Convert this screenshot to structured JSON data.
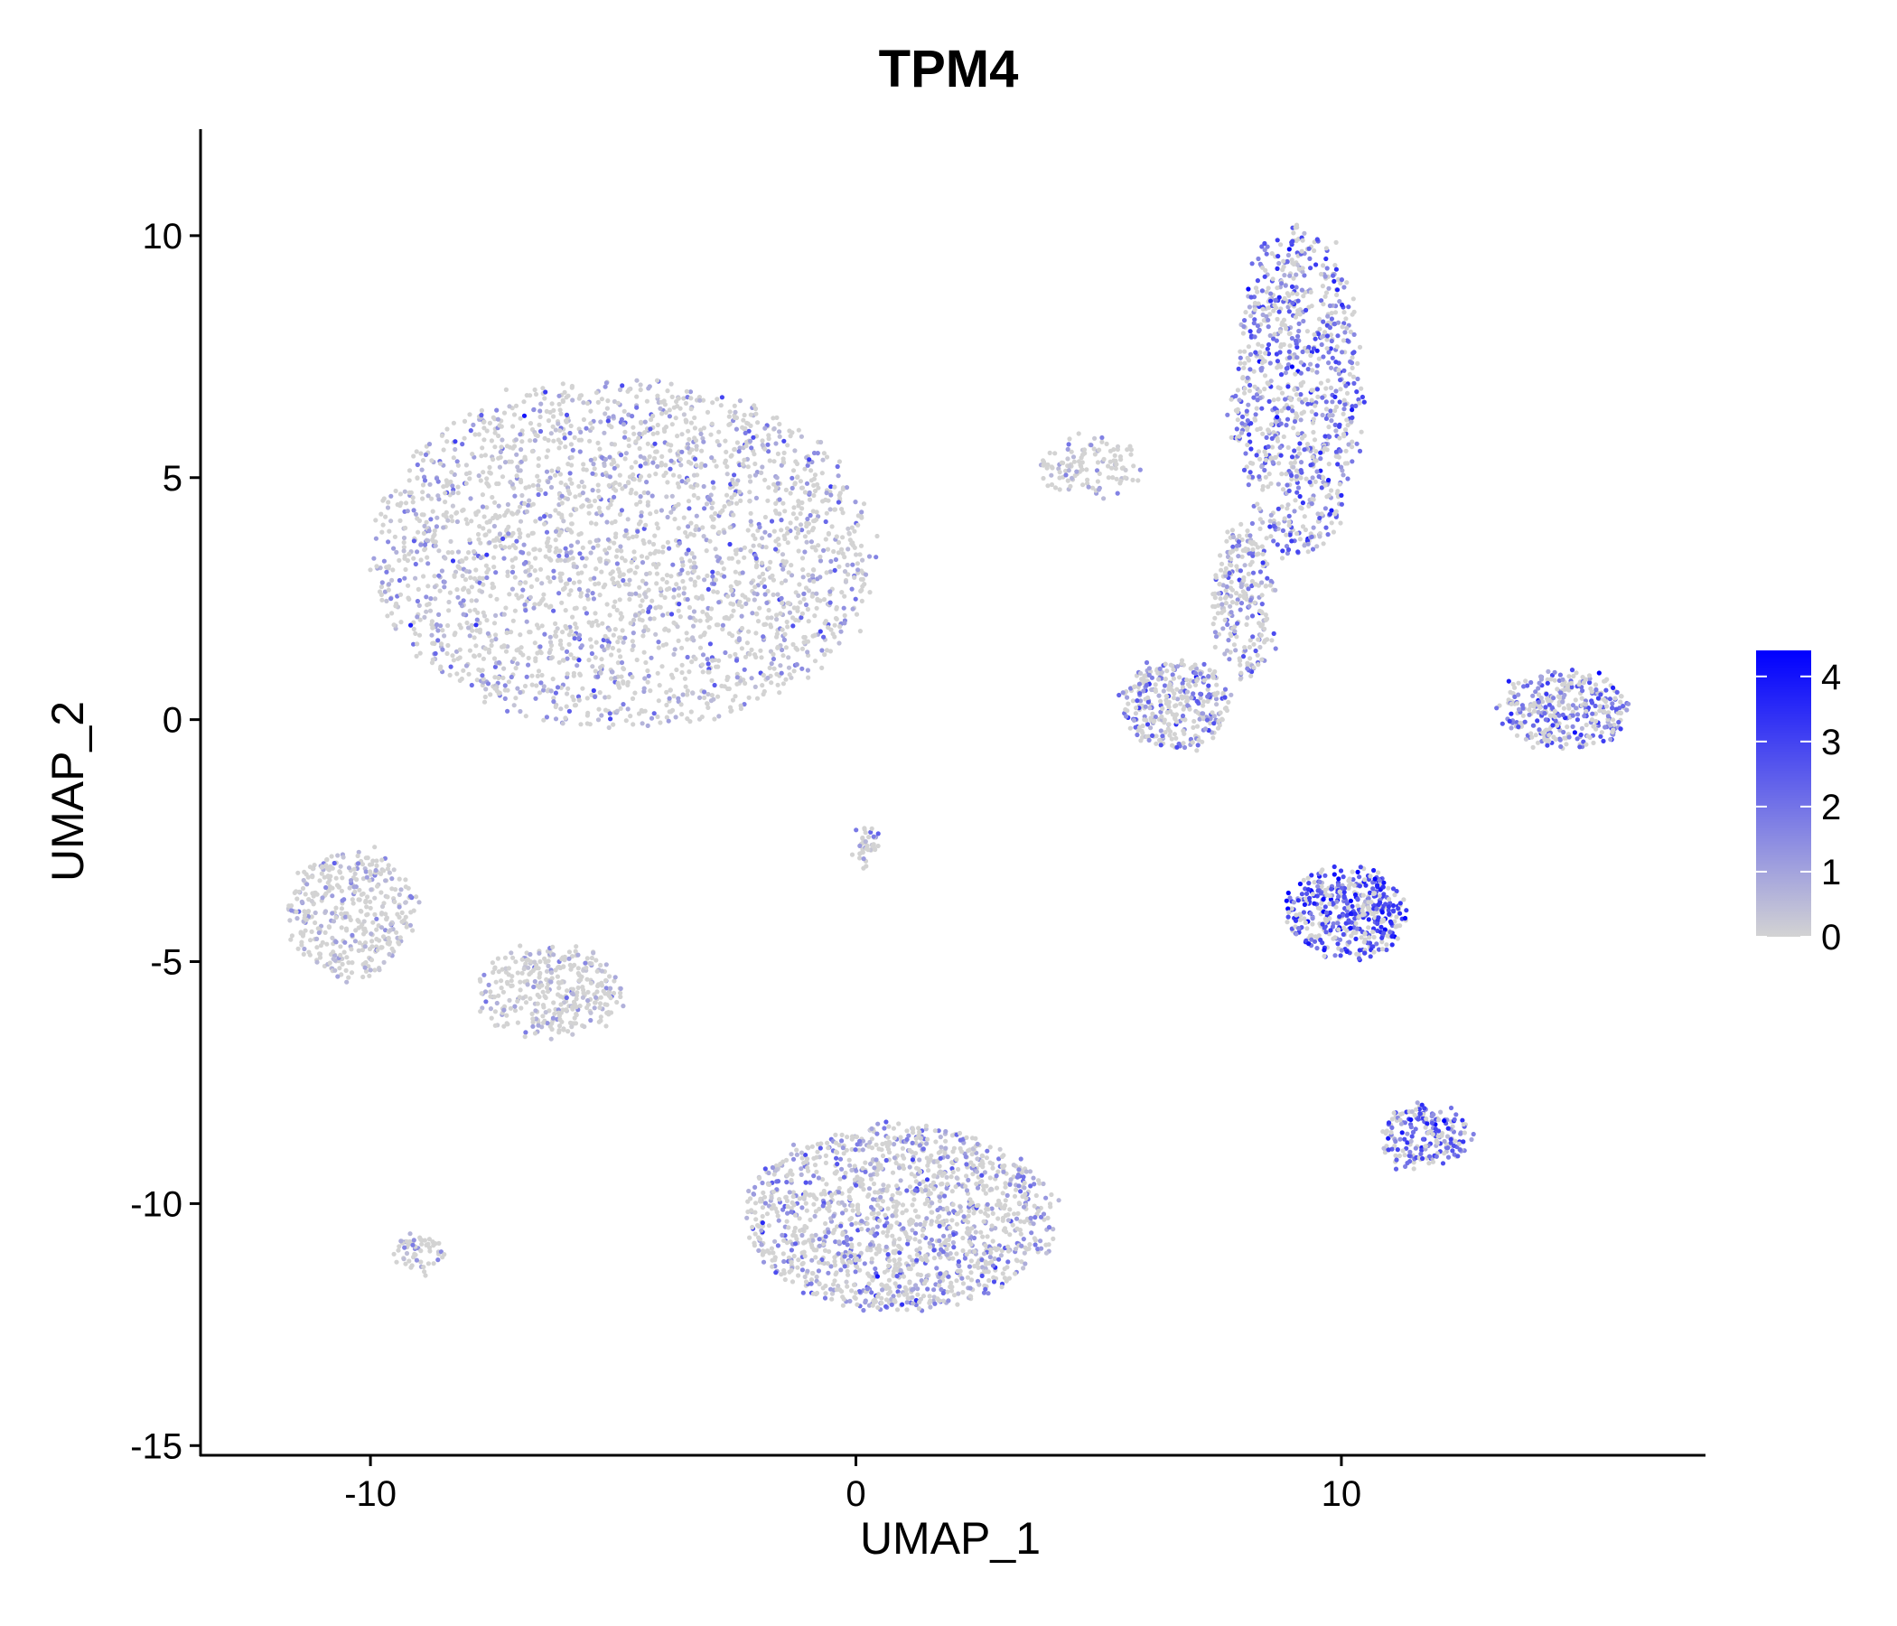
{
  "chart_data": {
    "type": "scatter",
    "title": "TPM4",
    "xlabel": "UMAP_1",
    "ylabel": "UMAP_2",
    "xlim": [
      -13.5,
      17.5
    ],
    "ylim": [
      -15.2,
      12.2
    ],
    "x_ticks": [
      -10,
      0,
      10
    ],
    "y_ticks": [
      10,
      5,
      0,
      -5,
      -10,
      -15
    ],
    "grid": false,
    "legend_position": "right",
    "legend": {
      "ticks": [
        4,
        3,
        2,
        1,
        0
      ],
      "min": 0,
      "max": 4.4,
      "low_color": "#d3d3d3",
      "high_color": "#0000ff"
    },
    "clusters": [
      {
        "name": "large-upper-left",
        "center": [
          -4.8,
          3.4
        ],
        "spread": [
          5.2,
          3.6
        ],
        "mean_expression": 0.9,
        "n_points": 2600
      },
      {
        "name": "upper-right-tall",
        "center": [
          9.1,
          6.8
        ],
        "spread": [
          1.3,
          3.4
        ],
        "mean_expression": 2.0,
        "n_points": 900
      },
      {
        "name": "upper-right-stem",
        "center": [
          8.0,
          2.4
        ],
        "spread": [
          0.6,
          1.6
        ],
        "mean_expression": 1.4,
        "n_points": 250
      },
      {
        "name": "mid-right-lobe",
        "center": [
          6.6,
          0.3
        ],
        "spread": [
          1.1,
          0.9
        ],
        "mean_expression": 1.5,
        "n_points": 350
      },
      {
        "name": "far-right-crescent",
        "center": [
          14.6,
          0.2
        ],
        "spread": [
          1.3,
          0.8
        ],
        "mean_expression": 2.0,
        "n_points": 350
      },
      {
        "name": "middle-right-triangle",
        "center": [
          10.1,
          -4.0
        ],
        "spread": [
          1.2,
          0.9
        ],
        "mean_expression": 2.8,
        "n_points": 450
      },
      {
        "name": "lower-right-small",
        "center": [
          11.7,
          -8.6
        ],
        "spread": [
          0.9,
          0.6
        ],
        "mean_expression": 2.2,
        "n_points": 200
      },
      {
        "name": "lower-middle-large",
        "center": [
          0.9,
          -10.3
        ],
        "spread": [
          3.2,
          1.9
        ],
        "mean_expression": 1.2,
        "n_points": 1500
      },
      {
        "name": "left-small-a",
        "center": [
          -10.4,
          -4.0
        ],
        "spread": [
          1.3,
          1.3
        ],
        "mean_expression": 0.6,
        "n_points": 400
      },
      {
        "name": "left-small-b",
        "center": [
          -6.3,
          -5.6
        ],
        "spread": [
          1.5,
          0.9
        ],
        "mean_expression": 0.4,
        "n_points": 350
      },
      {
        "name": "tiny-left-bottom",
        "center": [
          -9.0,
          -11.0
        ],
        "spread": [
          0.5,
          0.3
        ],
        "mean_expression": 0.5,
        "n_points": 60
      },
      {
        "name": "tiny-center-thread",
        "center": [
          0.2,
          -2.6
        ],
        "spread": [
          0.15,
          0.4
        ],
        "mean_expression": 1.0,
        "n_points": 40
      },
      {
        "name": "bridge-scatter",
        "center": [
          4.8,
          5.2
        ],
        "spread": [
          1.0,
          0.6
        ],
        "mean_expression": 0.3,
        "n_points": 120
      }
    ]
  }
}
